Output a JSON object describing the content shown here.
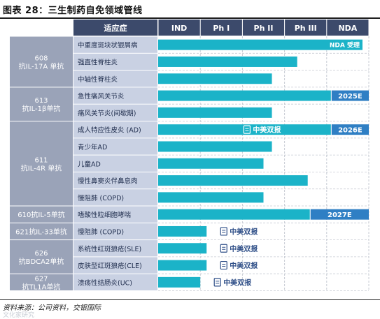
{
  "figure_title": "图表 28：三生制药自免领域管线",
  "source": "资料来源：公司资料，交银国际",
  "watermark": "文化家研究",
  "colors": {
    "header_bg": "#3c4a6b",
    "group_bg": "#9aa3b8",
    "indication_bg": "#c9d1e3",
    "bar": "#1bb3c8",
    "bar_dark": "#1aa0b8",
    "label_box": "#2f7fc4",
    "badge_text": "#2f4f88",
    "grid": "#c8ccd4"
  },
  "chart_data": {
    "type": "table",
    "headers": [
      "适应症",
      "IND",
      "Ph I",
      "Ph II",
      "Ph III",
      "NDA"
    ],
    "stages": [
      "IND",
      "Ph I",
      "Ph II",
      "Ph III",
      "NDA"
    ],
    "groups": [
      {
        "label": "608 抗IL-17A 单抗",
        "rows": 3
      },
      {
        "label": "613 抗IL-1β单抗",
        "rows": 2
      },
      {
        "label": "611 抗IL-4R 单抗",
        "rows": 5
      },
      {
        "label": "610抗IL-5单抗",
        "rows": 1
      },
      {
        "label": "621抗IL-33单抗",
        "rows": 1
      },
      {
        "label": "626 抗BDCA2单抗",
        "rows": 2
      },
      {
        "label": "627 抗TL1A单抗",
        "rows": 1
      }
    ],
    "rows": [
      {
        "indication": "中重度斑块状银屑病",
        "progress": 4.85,
        "tag": "NDA 受理",
        "tag_style": "inline"
      },
      {
        "indication": "强直性脊柱炎",
        "progress": 3.3,
        "tag": "",
        "tag_style": ""
      },
      {
        "indication": "中轴性脊柱炎",
        "progress": 2.7,
        "tag": "",
        "tag_style": ""
      },
      {
        "indication": "急性痛风关节炎",
        "progress": 4.1,
        "tag": "2025E",
        "tag_style": "box"
      },
      {
        "indication": "痛风关节炎(间歇期)",
        "progress": 2.7,
        "tag": "",
        "tag_style": ""
      },
      {
        "indication": "成人特应性皮炎 (AD)",
        "progress": 4.1,
        "tag": "2026E",
        "tag_style": "box",
        "badge": "中美双报"
      },
      {
        "indication": "青少年AD",
        "progress": 2.7,
        "tag": "",
        "tag_style": ""
      },
      {
        "indication": "儿童AD",
        "progress": 2.5,
        "tag": "",
        "tag_style": ""
      },
      {
        "indication": "慢性鼻窦炎伴鼻息肉",
        "progress": 3.55,
        "tag": "",
        "tag_style": ""
      },
      {
        "indication": "慢阻肺 (COPD)",
        "progress": 2.5,
        "tag": "",
        "tag_style": ""
      },
      {
        "indication": "嗜酸性粒细胞哮喘",
        "progress": 3.6,
        "tag": "2027E",
        "tag_style": "box"
      },
      {
        "indication": "慢阻肺 (COPD)",
        "progress": 1.15,
        "tag": "",
        "tag_style": "",
        "badge": "中美双报"
      },
      {
        "indication": "系统性红斑狼疮(SLE)",
        "progress": 1.15,
        "tag": "",
        "tag_style": "",
        "badge": "中美双报"
      },
      {
        "indication": "皮肤型红斑狼疮(CLE)",
        "progress": 1.15,
        "tag": "",
        "tag_style": "",
        "badge": "中美双报"
      },
      {
        "indication": "溃疡性结肠炎(UC)",
        "progress": 1.0,
        "tag": "",
        "tag_style": "",
        "badge": "中美双报"
      }
    ]
  }
}
